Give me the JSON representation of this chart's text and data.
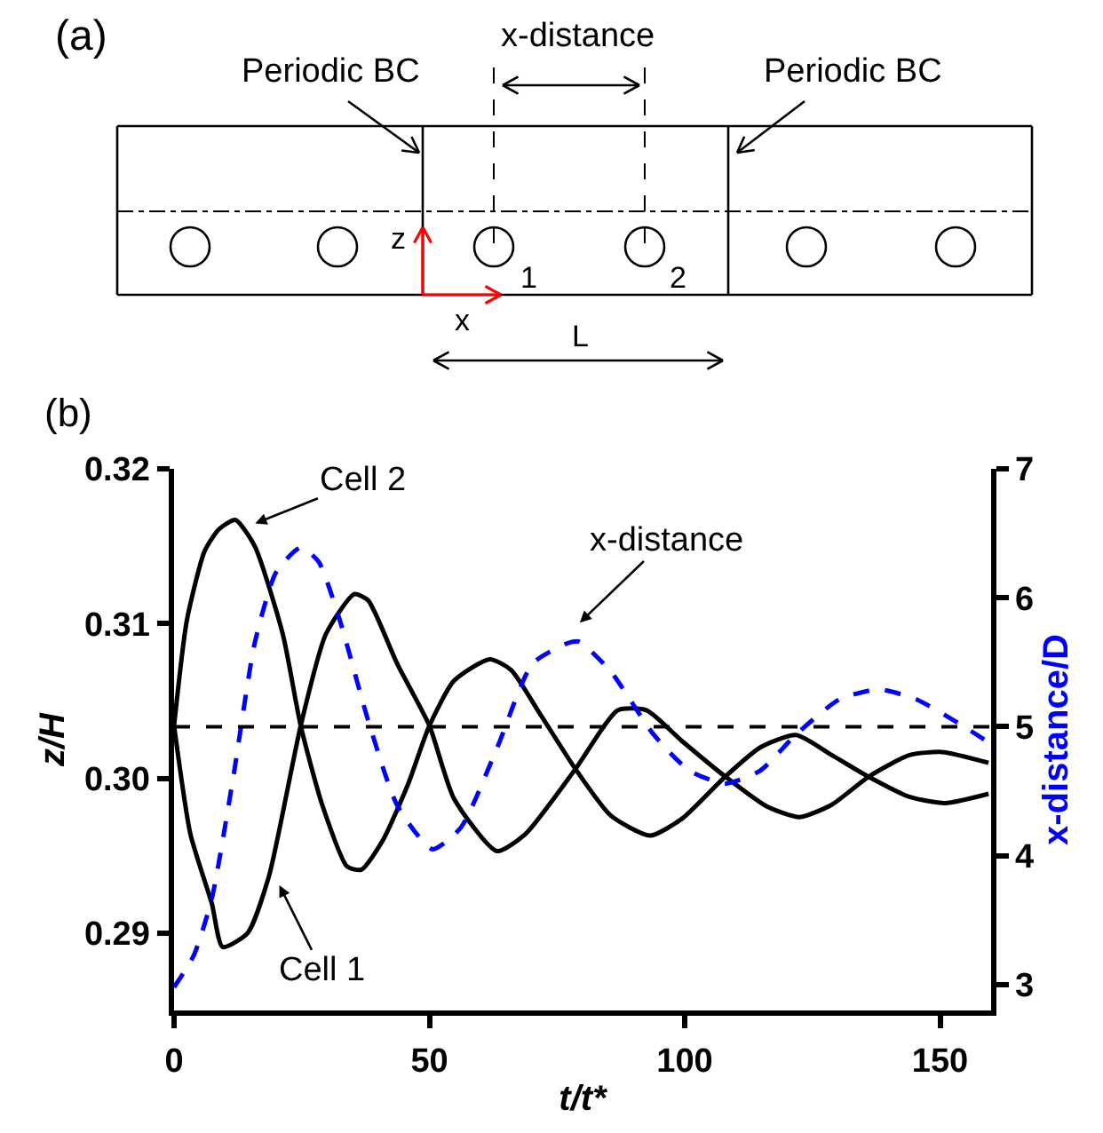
{
  "chart_data": {
    "type": "line",
    "xlabel": "t/t*",
    "ylabel": "z/H",
    "y2label": "x-distance/D",
    "xlim": [
      0,
      160
    ],
    "xticks": [
      0,
      50,
      100,
      150
    ],
    "ylim": [
      0.285,
      0.32
    ],
    "yticks": [
      {
        "value": 0.29,
        "label": "0.29"
      },
      {
        "value": 0.3,
        "label": "0.30"
      },
      {
        "value": 0.31,
        "label": "0.31"
      },
      {
        "value": 0.32,
        "label": "0.32"
      }
    ],
    "y2lim": [
      2.8,
      7
    ],
    "y2ticks": [
      3,
      4,
      5,
      6,
      7
    ],
    "legend": false,
    "series": [
      {
        "color": "#000000",
        "line_style": "solid",
        "x": [
          0,
          3.2,
          7.4,
          9.5,
          14.4,
          18.6,
          24.8,
          29.7,
          35.3,
          38,
          43.7,
          50,
          54.8,
          63.2,
          68.8,
          78.6,
          86.9,
          92.5,
          99.5,
          108,
          116,
          122.5,
          128.8,
          136,
          144,
          150.4,
          159.5
        ],
        "values": [
          0.3034,
          0.2964,
          0.2919,
          0.2891,
          0.29,
          0.2937,
          0.3034,
          0.3093,
          0.3119,
          0.3115,
          0.3074,
          0.3034,
          0.2987,
          0.2953,
          0.2964,
          0.3006,
          0.3044,
          0.3044,
          0.3024,
          0.3001,
          0.2982,
          0.2975,
          0.2983,
          0.3001,
          0.3015,
          0.3017,
          0.301
        ]
      },
      {
        "color": "#000000",
        "line_style": "solid",
        "x": [
          0,
          2.5,
          6,
          8.8,
          12,
          15.8,
          21.3,
          24.8,
          29,
          33.9,
          36.7,
          40.9,
          45.8,
          50,
          54.8,
          61.8,
          66,
          71.6,
          78.6,
          85.5,
          93.2,
          99.5,
          107.9,
          114.8,
          121.8,
          128.8,
          136,
          144,
          151,
          159.5
        ],
        "values": [
          0.3034,
          0.3102,
          0.3147,
          0.3161,
          0.3167,
          0.315,
          0.3093,
          0.3034,
          0.2983,
          0.2943,
          0.2941,
          0.296,
          0.2996,
          0.3034,
          0.3063,
          0.3077,
          0.307,
          0.3042,
          0.3006,
          0.2976,
          0.2963,
          0.2974,
          0.3001,
          0.302,
          0.3028,
          0.3015,
          0.3001,
          0.2988,
          0.2984,
          0.299
        ]
      },
      {
        "color": "#0000ff",
        "line_style": "dashed",
        "axis": "y2",
        "x": [
          0,
          3.9,
          7.4,
          11.6,
          15.8,
          20,
          24.8,
          28.3,
          32.5,
          38,
          43.7,
          50.6,
          56.2,
          63.2,
          70.2,
          77.2,
          79.3,
          85.5,
          93.9,
          100.9,
          107.9,
          114.8,
          121.8,
          130.2,
          137.9,
          145.5,
          153.9,
          159.5
        ],
        "values": [
          2.98,
          3.23,
          3.67,
          4.61,
          5.65,
          6.2,
          6.39,
          6.28,
          5.82,
          5.05,
          4.39,
          4.05,
          4.22,
          4.83,
          5.49,
          5.65,
          5.66,
          5.43,
          4.94,
          4.66,
          4.56,
          4.66,
          4.94,
          5.21,
          5.29,
          5.21,
          5.02,
          4.88
        ]
      }
    ],
    "ref_lines": [
      {
        "axis": "y2",
        "value": 5,
        "color": "#000000",
        "line_style": "dashed"
      }
    ],
    "annotations": [
      "(a)",
      "Periodic BC",
      "x-distance",
      "Periodic BC",
      "z",
      "x",
      "1",
      "2",
      "L",
      "(b)",
      {
        "text": "Cell 2",
        "x": 14.6,
        "y": 0.3163
      },
      {
        "text": "Cell 1",
        "x": 20,
        "y": 0.2935
      },
      "x-distance"
    ]
  }
}
